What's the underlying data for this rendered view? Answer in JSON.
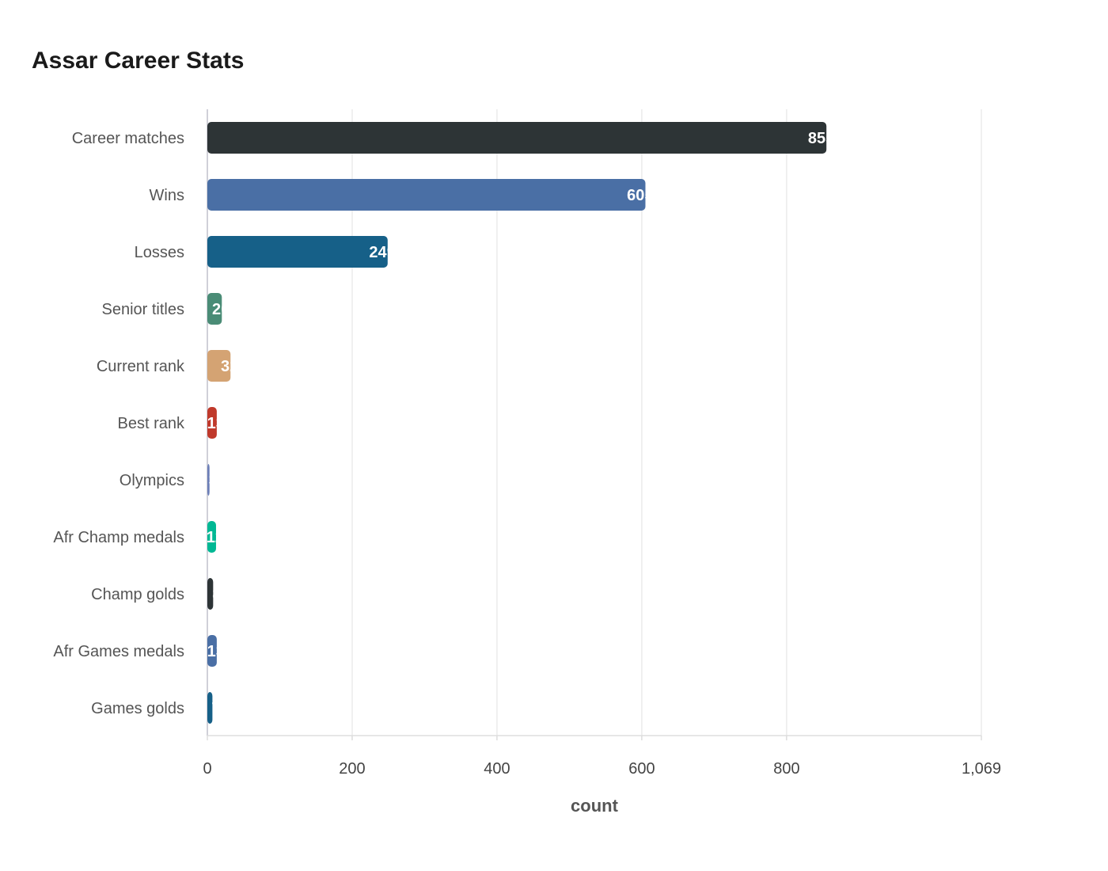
{
  "chart_data": {
    "type": "bar",
    "orientation": "horizontal",
    "title": "Assar Career Stats",
    "xlabel": "count",
    "ylabel": "",
    "xlim": [
      0,
      1069
    ],
    "x_ticks": [
      "0",
      "200",
      "400",
      "600",
      "800",
      "1,069"
    ],
    "x_tick_values": [
      0,
      200,
      400,
      600,
      800,
      1069
    ],
    "grid": true,
    "categories": [
      "Career matches",
      "Wins",
      "Losses",
      "Senior titles",
      "Current rank",
      "Best rank",
      "Olympics",
      "Afr Champ medals",
      "Champ golds",
      "Afr Games medals",
      "Games golds"
    ],
    "values": [
      855,
      605,
      249,
      20,
      32,
      13,
      3,
      12,
      8,
      13,
      7
    ],
    "colors": [
      "#2d3436",
      "#4a6fa5",
      "#166088",
      "#4a8c76",
      "#d4a373",
      "#c0392b",
      "#6c7fb8",
      "#00b894",
      "#2d3436",
      "#4a6fa5",
      "#166088"
    ]
  }
}
